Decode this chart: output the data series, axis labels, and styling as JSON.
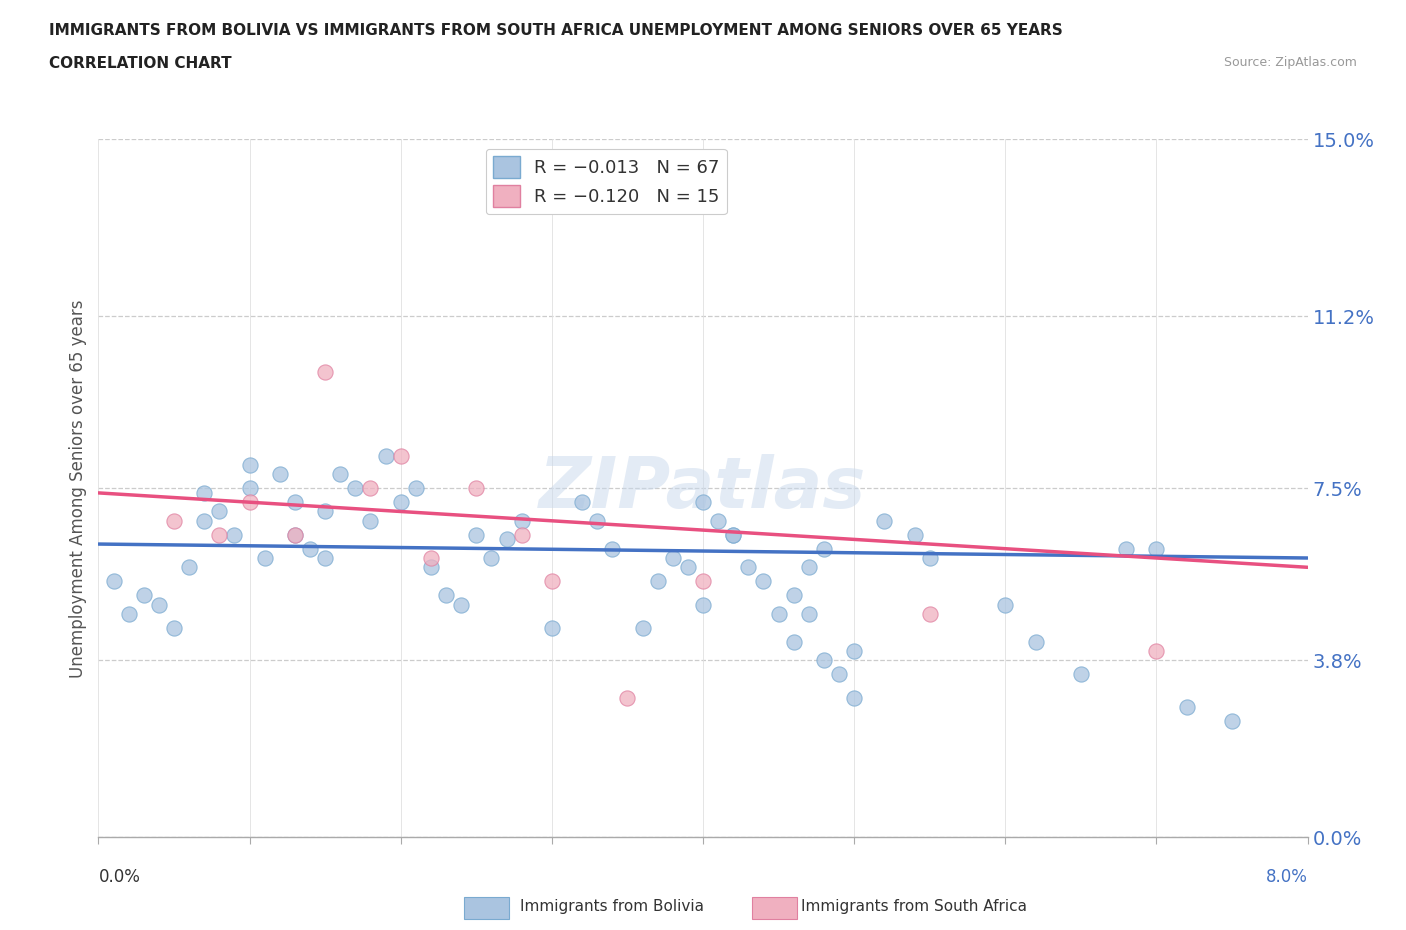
{
  "title_line1": "IMMIGRANTS FROM BOLIVIA VS IMMIGRANTS FROM SOUTH AFRICA UNEMPLOYMENT AMONG SENIORS OVER 65 YEARS",
  "title_line2": "CORRELATION CHART",
  "source": "Source: ZipAtlas.com",
  "ylabel_label": "Unemployment Among Seniors over 65 years",
  "legend_bolivia": "R = -0.013   N = 67",
  "legend_sa": "R = -0.120   N = 15",
  "bolivia_color": "#aac4e0",
  "bolivia_edge": "#7aaad0",
  "sa_color": "#f0b0c0",
  "sa_edge": "#e080a0",
  "bolivia_line_color": "#4472C4",
  "sa_line_color": "#e85080",
  "watermark_text": "ZIPatlas",
  "bolivia_scatter_x": [
    0.001,
    0.002,
    0.003,
    0.004,
    0.005,
    0.006,
    0.007,
    0.007,
    0.008,
    0.009,
    0.01,
    0.01,
    0.011,
    0.012,
    0.013,
    0.013,
    0.014,
    0.015,
    0.015,
    0.016,
    0.017,
    0.018,
    0.019,
    0.02,
    0.021,
    0.022,
    0.023,
    0.024,
    0.025,
    0.026,
    0.027,
    0.028,
    0.03,
    0.032,
    0.033,
    0.034,
    0.036,
    0.037,
    0.038,
    0.039,
    0.04,
    0.041,
    0.042,
    0.043,
    0.044,
    0.046,
    0.047,
    0.048,
    0.05,
    0.052,
    0.054,
    0.055,
    0.04,
    0.042,
    0.045,
    0.046,
    0.047,
    0.048,
    0.049,
    0.05,
    0.06,
    0.062,
    0.065,
    0.068,
    0.07,
    0.072,
    0.075
  ],
  "bolivia_scatter_y": [
    0.055,
    0.048,
    0.052,
    0.05,
    0.045,
    0.058,
    0.068,
    0.074,
    0.07,
    0.065,
    0.075,
    0.08,
    0.06,
    0.078,
    0.065,
    0.072,
    0.062,
    0.07,
    0.06,
    0.078,
    0.075,
    0.068,
    0.082,
    0.072,
    0.075,
    0.058,
    0.052,
    0.05,
    0.065,
    0.06,
    0.064,
    0.068,
    0.045,
    0.072,
    0.068,
    0.062,
    0.045,
    0.055,
    0.06,
    0.058,
    0.05,
    0.068,
    0.065,
    0.058,
    0.055,
    0.052,
    0.058,
    0.062,
    0.04,
    0.068,
    0.065,
    0.06,
    0.072,
    0.065,
    0.048,
    0.042,
    0.048,
    0.038,
    0.035,
    0.03,
    0.05,
    0.042,
    0.035,
    0.062,
    0.062,
    0.028,
    0.025
  ],
  "sa_scatter_x": [
    0.005,
    0.008,
    0.01,
    0.013,
    0.015,
    0.018,
    0.02,
    0.022,
    0.025,
    0.028,
    0.03,
    0.035,
    0.04,
    0.055,
    0.07
  ],
  "sa_scatter_y": [
    0.068,
    0.065,
    0.072,
    0.065,
    0.1,
    0.075,
    0.082,
    0.06,
    0.075,
    0.065,
    0.055,
    0.03,
    0.055,
    0.048,
    0.04
  ],
  "xlim": [
    0.0,
    0.08
  ],
  "ylim": [
    0.0,
    0.15
  ],
  "yticks": [
    0.0,
    0.038,
    0.075,
    0.112,
    0.15
  ],
  "ytick_labels": [
    "0.0%",
    "3.8%",
    "7.5%",
    "11.2%",
    "15.0%"
  ],
  "xtick_positions": [
    0.0,
    0.01,
    0.02,
    0.03,
    0.04,
    0.05,
    0.06,
    0.07,
    0.08
  ],
  "bolivia_trend_start_y": 0.063,
  "bolivia_trend_end_y": 0.06,
  "sa_trend_start_y": 0.074,
  "sa_trend_end_y": 0.058
}
